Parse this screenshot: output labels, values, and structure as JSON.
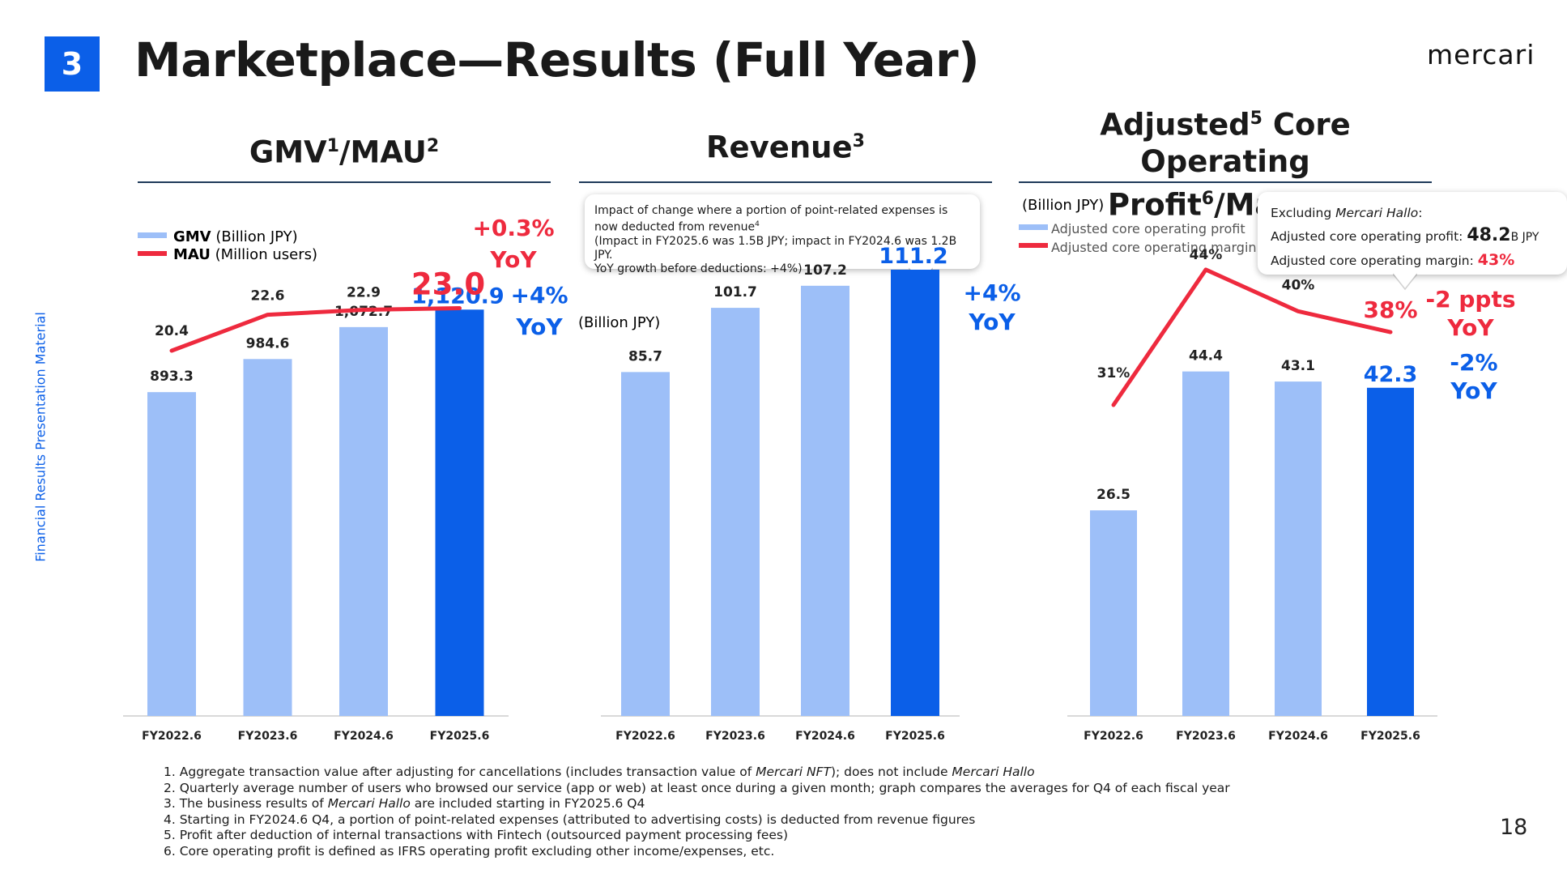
{
  "header": {
    "section_number": "3",
    "title": "Marketplace—Results (Full Year)",
    "logo": "mercari"
  },
  "side_label": "Financial Results Presentation Material",
  "page_number": "18",
  "colors": {
    "light_bar": "#9dbff8",
    "dark_bar": "#0b5fe8",
    "line": "#ee2a3e",
    "blue_text": "#0b5fe8",
    "red_text": "#ee2a3e"
  },
  "panels": {
    "gmv": {
      "title": "GMV",
      "sup1": "1",
      "sep": "/MAU",
      "sup2": "2"
    },
    "revenue": {
      "title": "Revenue",
      "sup1": "3"
    },
    "profit": {
      "title_line1a": "Adjusted",
      "sup1": "5",
      "title_line1b": " Core Operating",
      "title_line2a": "Profit",
      "sup2": "6",
      "title_line2b": "/Margin"
    }
  },
  "legends": {
    "gmv_label": "GMV",
    "gmv_unit": " (Billion JPY)",
    "mau_label": "MAU",
    "mau_unit": " (Million users)",
    "revenue_unit": "(Billion JPY)",
    "profit_unit": "(Billion JPY)",
    "profit_bar": "Adjusted core operating profit",
    "profit_line": "Adjusted core operating margin"
  },
  "callouts": {
    "revenue": {
      "line1": "Impact of change where a portion of point-related expenses is now deducted from revenue",
      "sup": "4",
      "line2": "(Impact in FY2025.6 was 1.5B JPY; impact in FY2024.6 was 1.2B JPY.",
      "line3": "YoY growth before deductions: +4%)"
    },
    "profit": {
      "prefix": "Excluding ",
      "name": "Mercari Hallo",
      "suffix": ":",
      "profit_label": "Adjusted core operating profit: ",
      "profit_value": "48.2",
      "profit_unit": "B JPY",
      "margin_label": "Adjusted core operating margin: ",
      "margin_value": "43%"
    }
  },
  "chart_data": [
    {
      "type": "bar",
      "title": "GMV/MAU",
      "categories": [
        "FY2022.6",
        "FY2023.6",
        "FY2024.6",
        "FY2025.6"
      ],
      "series": [
        {
          "name": "GMV (Billion JPY)",
          "values": [
            893.3,
            984.6,
            1072.7,
            1120.9
          ],
          "labels": [
            "893.3",
            "984.6",
            "1,072.7",
            "1,120.9"
          ]
        },
        {
          "name": "MAU (Million users)",
          "type": "line",
          "values": [
            20.4,
            22.6,
            22.9,
            23.0
          ],
          "labels": [
            "20.4",
            "22.6",
            "22.9",
            "23.0"
          ]
        }
      ],
      "annotations": {
        "gmv_yoy_1": "+4%",
        "gmv_yoy_2": "YoY",
        "mau_yoy_1": "+0.3%",
        "mau_yoy_2": "YoY"
      }
    },
    {
      "type": "bar",
      "title": "Revenue",
      "ylabel": "(Billion JPY)",
      "categories": [
        "FY2022.6",
        "FY2023.6",
        "FY2024.6",
        "FY2025.6"
      ],
      "series": [
        {
          "name": "Revenue (Billion JPY)",
          "values": [
            85.7,
            101.7,
            107.2,
            111.2
          ],
          "labels": [
            "85.7",
            "101.7",
            "107.2",
            "111.2"
          ]
        }
      ],
      "annotations": {
        "yoy_1": "+4%",
        "yoy_2": "YoY"
      }
    },
    {
      "type": "bar",
      "title": "Adjusted Core Operating Profit/Margin",
      "ylabel": "(Billion JPY)",
      "categories": [
        "FY2022.6",
        "FY2023.6",
        "FY2024.6",
        "FY2025.6"
      ],
      "series": [
        {
          "name": "Adjusted core operating profit",
          "values": [
            26.5,
            44.4,
            43.1,
            42.3
          ],
          "labels": [
            "26.5",
            "44.4",
            "43.1",
            "42.3"
          ]
        },
        {
          "name": "Adjusted core operating margin",
          "type": "line",
          "values": [
            31,
            44,
            40,
            38
          ],
          "labels": [
            "31%",
            "44%",
            "40%",
            "38%"
          ]
        }
      ],
      "annotations": {
        "margin_yoy_1": "-2 ppts",
        "margin_yoy_2": "YoY",
        "profit_yoy_1": "-2%",
        "profit_yoy_2": "YoY"
      }
    }
  ],
  "footnotes": {
    "n1a": "1. Aggregate transaction value after adjusting for cancellations (includes transaction value of ",
    "n1b": "Mercari NFT",
    "n1c": "); does not include ",
    "n1d": "Mercari Hallo",
    "n2": "2. Quarterly average number of users who browsed our service (app or web) at least once during a given month; graph compares the averages for Q4 of each fiscal year",
    "n3a": "3. The business results of ",
    "n3b": "Mercari Hallo",
    "n3c": " are included starting in FY2025.6 Q4",
    "n4": "4. Starting in FY2024.6 Q4, a portion of point-related expenses (attributed to advertising costs) is deducted from revenue figures",
    "n5": "5. Profit after deduction of internal transactions with Fintech (outsourced payment processing fees)",
    "n6": "6. Core operating profit is defined as IFRS operating profit excluding other income/expenses, etc."
  }
}
